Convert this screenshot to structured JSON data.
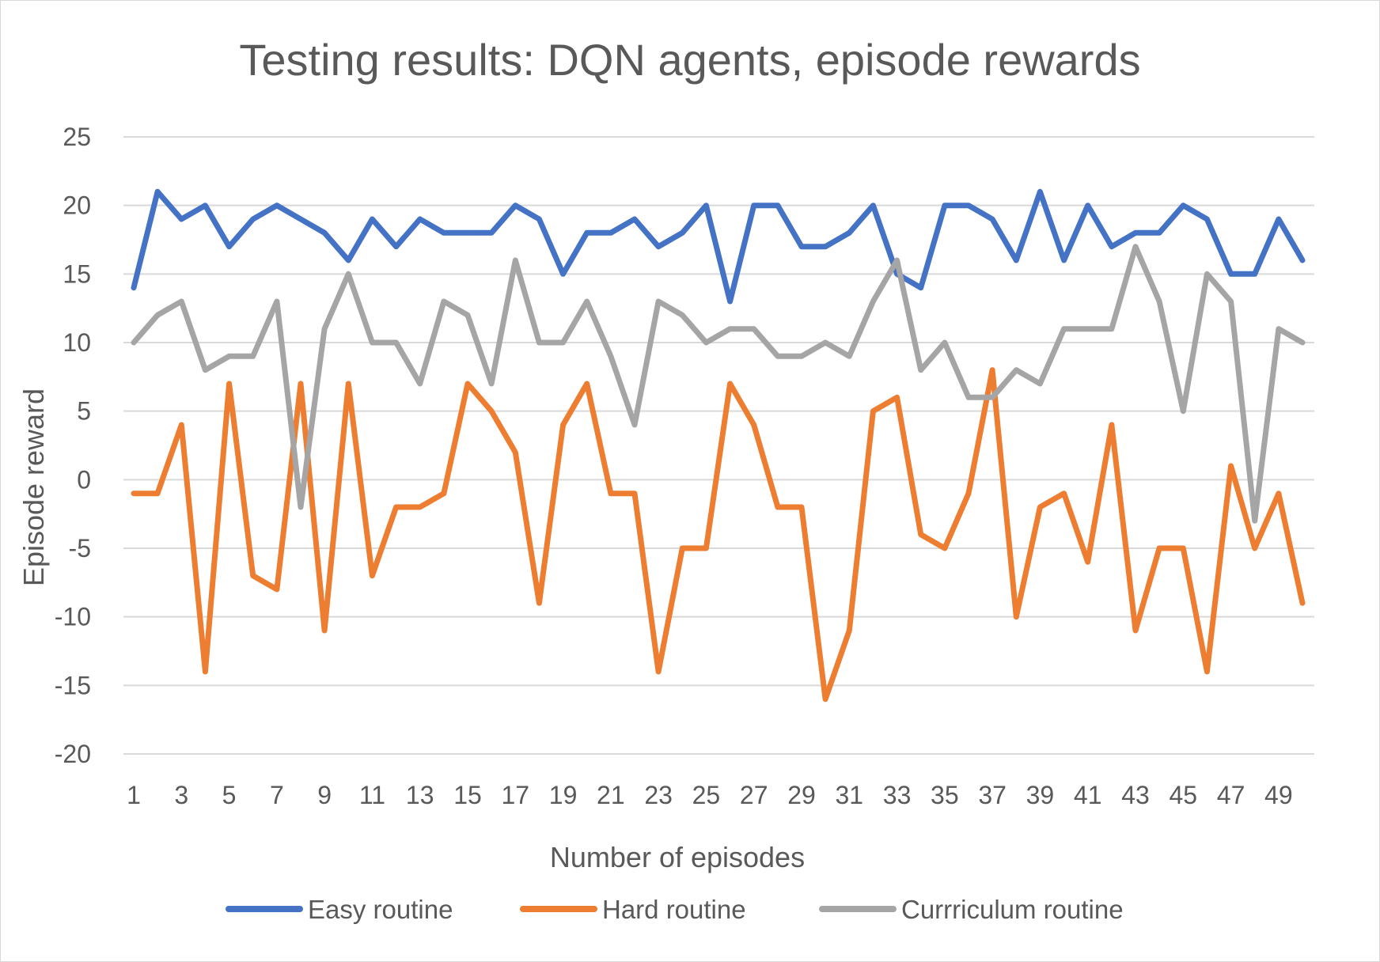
{
  "chart_data": {
    "type": "line",
    "title": "Testing results: DQN agents, episode rewards",
    "xlabel": "Number of episodes",
    "ylabel": "Episode reward",
    "ylim": [
      -20,
      25
    ],
    "yticks": [
      "25",
      "20",
      "15",
      "10",
      "5",
      "0",
      "-5",
      "-10",
      "-15",
      "-20"
    ],
    "x": [
      1,
      2,
      3,
      4,
      5,
      6,
      7,
      8,
      9,
      10,
      11,
      12,
      13,
      14,
      15,
      16,
      17,
      18,
      19,
      20,
      21,
      22,
      23,
      24,
      25,
      26,
      27,
      28,
      29,
      30,
      31,
      32,
      33,
      34,
      35,
      36,
      37,
      38,
      39,
      40,
      41,
      42,
      43,
      44,
      45,
      46,
      47,
      48,
      49,
      50
    ],
    "xtick_labels": [
      "1",
      "3",
      "5",
      "7",
      "9",
      "11",
      "13",
      "15",
      "17",
      "19",
      "21",
      "23",
      "25",
      "27",
      "29",
      "31",
      "33",
      "35",
      "37",
      "39",
      "41",
      "43",
      "45",
      "47",
      "49"
    ],
    "grid": true,
    "legend_position": "bottom",
    "series": [
      {
        "name": "Easy routine",
        "color": "#4472c4",
        "values": [
          14,
          21,
          19,
          20,
          17,
          19,
          20,
          19,
          18,
          16,
          19,
          17,
          19,
          18,
          18,
          18,
          20,
          19,
          15,
          18,
          18,
          19,
          17,
          18,
          20,
          13,
          20,
          20,
          17,
          17,
          18,
          20,
          15,
          14,
          20,
          20,
          19,
          16,
          21,
          16,
          20,
          17,
          18,
          18,
          20,
          19,
          15,
          15,
          19,
          16
        ]
      },
      {
        "name": "Hard routine",
        "color": "#ed7d31",
        "values": [
          -1,
          -1,
          4,
          -14,
          7,
          -7,
          -8,
          7,
          -11,
          7,
          -7,
          -2,
          -2,
          -1,
          7,
          5,
          2,
          -9,
          4,
          7,
          -1,
          -1,
          -14,
          -5,
          -5,
          7,
          4,
          -2,
          -2,
          -16,
          -11,
          5,
          6,
          -4,
          -5,
          -1,
          8,
          -10,
          -2,
          -1,
          -6,
          4,
          -11,
          -5,
          -5,
          -14,
          1,
          -5,
          -1,
          -9
        ]
      },
      {
        "name": "Currriculum routine",
        "color": "#a5a5a5",
        "values": [
          10,
          12,
          13,
          8,
          9,
          9,
          13,
          -2,
          11,
          15,
          10,
          10,
          7,
          13,
          12,
          7,
          16,
          10,
          10,
          13,
          9,
          4,
          13,
          12,
          10,
          11,
          11,
          9,
          9,
          10,
          9,
          13,
          16,
          8,
          10,
          6,
          6,
          8,
          7,
          11,
          11,
          11,
          17,
          13,
          5,
          15,
          13,
          -3,
          11,
          10
        ]
      }
    ]
  }
}
